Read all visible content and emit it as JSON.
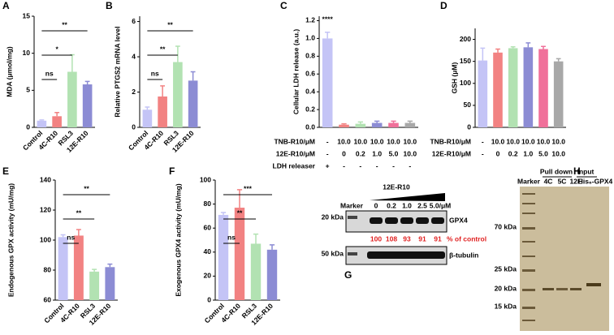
{
  "chart_data": [
    {
      "type": "bar",
      "label": "A",
      "ylabel": "MDA (μmol/mg)",
      "categories": [
        "Control",
        "4C-R10",
        "RSL3",
        "12E-R10"
      ],
      "values": [
        0.9,
        1.5,
        7.5,
        5.8
      ],
      "errors": [
        0.1,
        0.5,
        2.3,
        0.4
      ],
      "colors": [
        "#c4c4f6",
        "#f28282",
        "#b2e2b2",
        "#8c8cd4"
      ],
      "ylim": [
        0,
        15
      ],
      "yticks": [
        0,
        5,
        10,
        15
      ],
      "annotations": [
        "ns",
        "*",
        "**"
      ]
    },
    {
      "type": "bar",
      "label": "B",
      "ylabel": "Relative PTGS2 mRNA level",
      "categories": [
        "Control",
        "4C-R10",
        "RSL3",
        "12E-R10"
      ],
      "values": [
        1.0,
        1.75,
        3.7,
        2.65
      ],
      "errors": [
        0.15,
        0.6,
        0.9,
        0.5
      ],
      "colors": [
        "#c4c4f6",
        "#f28282",
        "#b2e2b2",
        "#8c8cd4"
      ],
      "ylim": [
        0,
        6.3
      ],
      "yticks": [
        0,
        2,
        4,
        6
      ],
      "annotations": [
        "ns",
        "**",
        "**"
      ]
    },
    {
      "type": "bar",
      "label": "C",
      "ylabel": "Cellular LDH release (a.u.)",
      "values": [
        1.0,
        0.03,
        0.04,
        0.05,
        0.05,
        0.05
      ],
      "errors": [
        0.07,
        0.01,
        0.02,
        0.02,
        0.02,
        0.02
      ],
      "colors": [
        "#c4c4f6",
        "#f28282",
        "#b2e2b2",
        "#8c8cd4",
        "#f0709a",
        "#a8a8a8"
      ],
      "ylim": [
        0,
        1.25
      ],
      "yticks": [
        {
          "value": 0,
          "label": "0.0"
        },
        0.2,
        0.4,
        0.6,
        0.8,
        {
          "value": 1,
          "label": "1.0"
        },
        1.2
      ],
      "top_annotation": "****",
      "table": [
        {
          "label": "TNB-R10/μM",
          "cells": [
            "-",
            "10.0",
            "10.0",
            "10.0",
            "10.0",
            "10.0"
          ]
        },
        {
          "label": "12E-R10/μM",
          "cells": [
            "-",
            "0",
            "0.2",
            "1.0",
            "5.0",
            "10.0"
          ]
        },
        {
          "label": "LDH releaser",
          "cells": [
            "+",
            "-",
            "-",
            "-",
            "-",
            "-"
          ]
        }
      ]
    },
    {
      "type": "bar",
      "label": "D",
      "ylabel": "GSH (μM)",
      "values": [
        152,
        170,
        180,
        182,
        178,
        150
      ],
      "errors": [
        28,
        8,
        3,
        10,
        6,
        6
      ],
      "colors": [
        "#c4c4f6",
        "#f28282",
        "#b2e2b2",
        "#8c8cd4",
        "#f0709a",
        "#a8a8a8"
      ],
      "ylim": [
        0,
        225
      ],
      "yticks": [
        0,
        50,
        100,
        150,
        200
      ],
      "table": [
        {
          "label": "TNB-R10/μM",
          "cells": [
            "-",
            "10.0",
            "10.0",
            "10.0",
            "10.0",
            "10.0"
          ]
        },
        {
          "label": "12E-R10/μM",
          "cells": [
            "-",
            "0",
            "0.2",
            "1.0",
            "5.0",
            "10.0"
          ]
        }
      ]
    },
    {
      "type": "bar",
      "label": "E",
      "ylabel": "Endogenous GPX activity (mU/mg)",
      "categories": [
        "Control",
        "4C-R10",
        "RSL3",
        "12E-R10"
      ],
      "values": [
        102,
        103,
        79,
        82
      ],
      "errors": [
        1.5,
        4,
        1.5,
        2
      ],
      "colors": [
        "#c4c4f6",
        "#f28282",
        "#b2e2b2",
        "#8c8cd4"
      ],
      "ylim": [
        60,
        140
      ],
      "yticks": [
        60,
        80,
        100,
        120,
        140
      ],
      "annotations": [
        "ns",
        "**",
        "**"
      ]
    },
    {
      "type": "bar",
      "label": "F",
      "ylabel": "Exogenous GPX4 activity (mU/mg)",
      "categories": [
        "Control",
        "4C-R10",
        "RSL3",
        "12E-R10"
      ],
      "values": [
        71,
        77,
        47,
        42
      ],
      "errors": [
        2,
        15,
        8,
        4
      ],
      "colors": [
        "#c4c4f6",
        "#f28282",
        "#b2e2b2",
        "#8c8cd4"
      ],
      "ylim": [
        0,
        100
      ],
      "yticks": [
        0,
        20,
        40,
        60,
        80,
        100
      ],
      "annotations": [
        "ns",
        "**",
        "***"
      ]
    }
  ],
  "blots": {
    "G": {
      "label": "G",
      "treatment": "12E-R10",
      "lanes": [
        "Marker",
        "0",
        "0.2",
        "1.0",
        "2.5",
        "5.0/μM"
      ],
      "marker_top": "20 kDa",
      "band_top": "GPX4",
      "percentages": [
        "100",
        "108",
        "93",
        "91",
        "91"
      ],
      "percent_label": "% of control",
      "marker_bottom": "50 kDa",
      "band_bottom": "β-tubulin"
    },
    "H": {
      "label": "H",
      "groups": [
        "Pull down",
        "Input"
      ],
      "lanes": [
        "Marker",
        "4C",
        "5C",
        "12E",
        "His₆-GPX4"
      ],
      "markers": [
        "70 kDa",
        "25 kDa",
        "20 kDa",
        "15 kDa"
      ]
    }
  }
}
